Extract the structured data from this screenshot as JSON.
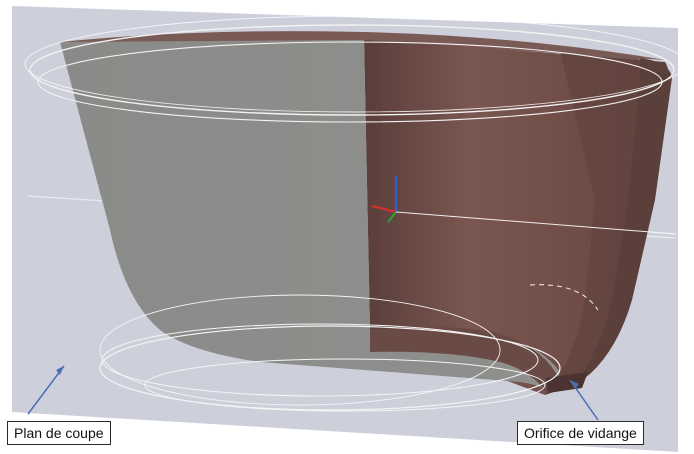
{
  "labels": {
    "section_plane": "Plan de coupe",
    "drain_orifice": "Orifice de vidange"
  },
  "colors": {
    "background": "#ffffff",
    "section_plane": "#c9ccd8",
    "outer_wall_cut": "#8c8d8a",
    "inner_wall": "#6b4a45",
    "inner_wall_dark": "#573a36",
    "arrow": "#4a6fb0",
    "axis_x": "#d03030",
    "axis_y": "#30a030",
    "axis_z": "#3060d0"
  }
}
